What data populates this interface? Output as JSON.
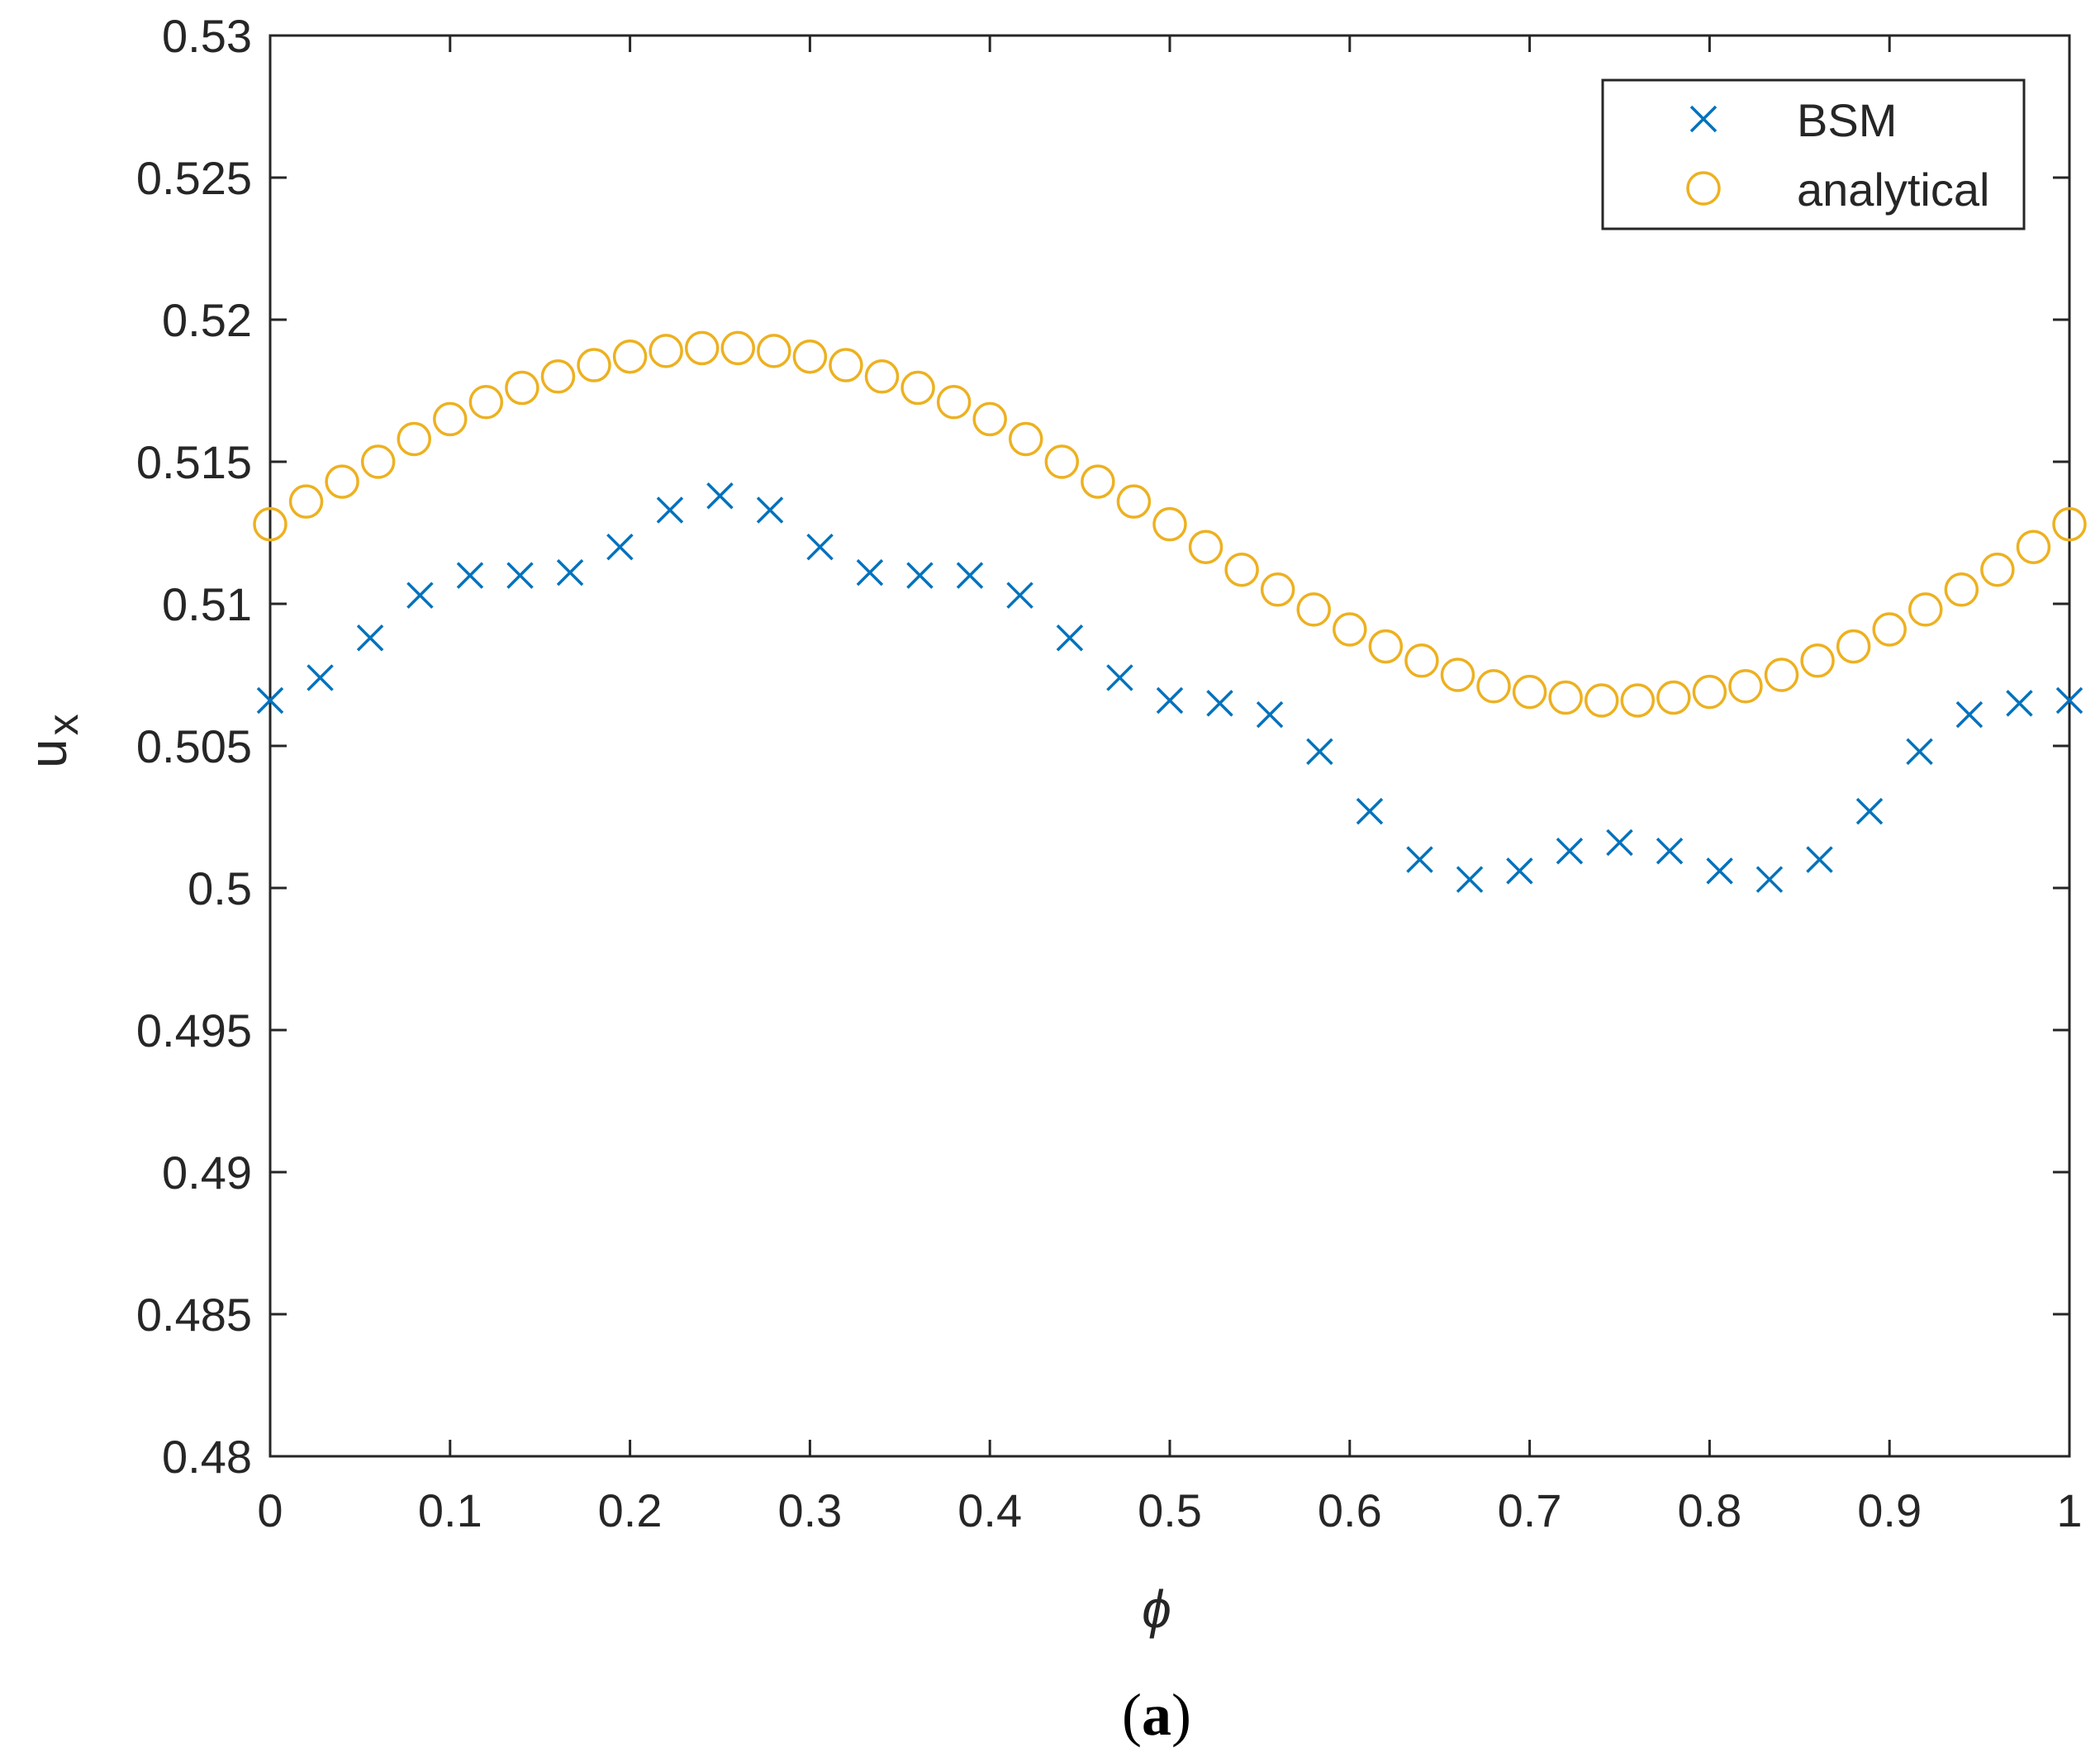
{
  "chart_data": {
    "type": "scatter",
    "title": "",
    "xlabel": "ϕ",
    "ylabel_main": "u",
    "ylabel_sub": "x",
    "xlim": [
      0,
      1
    ],
    "ylim": [
      0.48,
      0.53
    ],
    "grid": false,
    "legend_position": "top-right",
    "x_ticks": [
      0,
      0.1,
      0.2,
      0.3,
      0.4,
      0.5,
      0.6,
      0.7,
      0.8,
      0.9,
      1
    ],
    "x_tick_labels": [
      "0",
      "0.1",
      "0.2",
      "0.3",
      "0.4",
      "0.5",
      "0.6",
      "0.7",
      "0.8",
      "0.9",
      "1"
    ],
    "y_ticks": [
      0.48,
      0.485,
      0.49,
      0.495,
      0.5,
      0.505,
      0.51,
      0.515,
      0.52,
      0.525,
      0.53
    ],
    "y_tick_labels": [
      "0.48",
      "0.485",
      "0.49",
      "0.495",
      "0.5",
      "0.505",
      "0.51",
      "0.515",
      "0.52",
      "0.525",
      "0.53"
    ],
    "series": [
      {
        "name": "BSM",
        "marker": "x",
        "color": "#0072BD",
        "x": [
          0,
          0.0278,
          0.0556,
          0.0833,
          0.1111,
          0.1389,
          0.1667,
          0.1944,
          0.2222,
          0.25,
          0.2778,
          0.3056,
          0.3333,
          0.3611,
          0.3889,
          0.4167,
          0.4444,
          0.4722,
          0.5,
          0.5278,
          0.5556,
          0.5833,
          0.6111,
          0.6389,
          0.6667,
          0.6944,
          0.7222,
          0.75,
          0.7778,
          0.8056,
          0.8333,
          0.8611,
          0.8889,
          0.9167,
          0.9444,
          0.9722,
          1.0
        ],
        "y": [
          0.5066,
          0.5074,
          0.5088,
          0.5103,
          0.511,
          0.511,
          0.5111,
          0.512,
          0.5133,
          0.5138,
          0.5133,
          0.512,
          0.5111,
          0.511,
          0.511,
          0.5103,
          0.5088,
          0.5074,
          0.5066,
          0.5065,
          0.5061,
          0.5048,
          0.5027,
          0.501,
          0.5003,
          0.5006,
          0.5013,
          0.5016,
          0.5013,
          0.5006,
          0.5003,
          0.501,
          0.5027,
          0.5048,
          0.5061,
          0.5065,
          0.5066
        ]
      },
      {
        "name": "analytical",
        "marker": "o",
        "color": "#EDB120",
        "x": [
          0,
          0.02,
          0.04,
          0.06,
          0.08,
          0.1,
          0.12,
          0.14,
          0.16,
          0.18,
          0.2,
          0.22,
          0.24,
          0.26,
          0.28,
          0.3,
          0.32,
          0.34,
          0.36,
          0.38,
          0.4,
          0.42,
          0.44,
          0.46,
          0.48,
          0.5,
          0.52,
          0.54,
          0.56,
          0.58,
          0.6,
          0.62,
          0.64,
          0.66,
          0.68,
          0.7,
          0.72,
          0.74,
          0.76,
          0.78,
          0.8,
          0.82,
          0.84,
          0.86,
          0.88,
          0.9,
          0.92,
          0.94,
          0.96,
          0.98,
          1.0
        ],
        "y": [
          0.5128,
          0.5136,
          0.5143,
          0.515,
          0.5158,
          0.5165,
          0.5171,
          0.5176,
          0.518,
          0.5184,
          0.5187,
          0.5189,
          0.519,
          0.519,
          0.5189,
          0.5187,
          0.5184,
          0.518,
          0.5176,
          0.5171,
          0.5165,
          0.5158,
          0.515,
          0.5143,
          0.5136,
          0.5128,
          0.512,
          0.5112,
          0.5105,
          0.5098,
          0.5091,
          0.5085,
          0.508,
          0.5075,
          0.5071,
          0.5069,
          0.5067,
          0.5066,
          0.5066,
          0.5067,
          0.5069,
          0.5071,
          0.5075,
          0.508,
          0.5085,
          0.5091,
          0.5098,
          0.5105,
          0.5112,
          0.512,
          0.5128
        ]
      }
    ],
    "caption_paren_open": "(",
    "caption_letter": "a",
    "caption_paren_close": ")"
  }
}
